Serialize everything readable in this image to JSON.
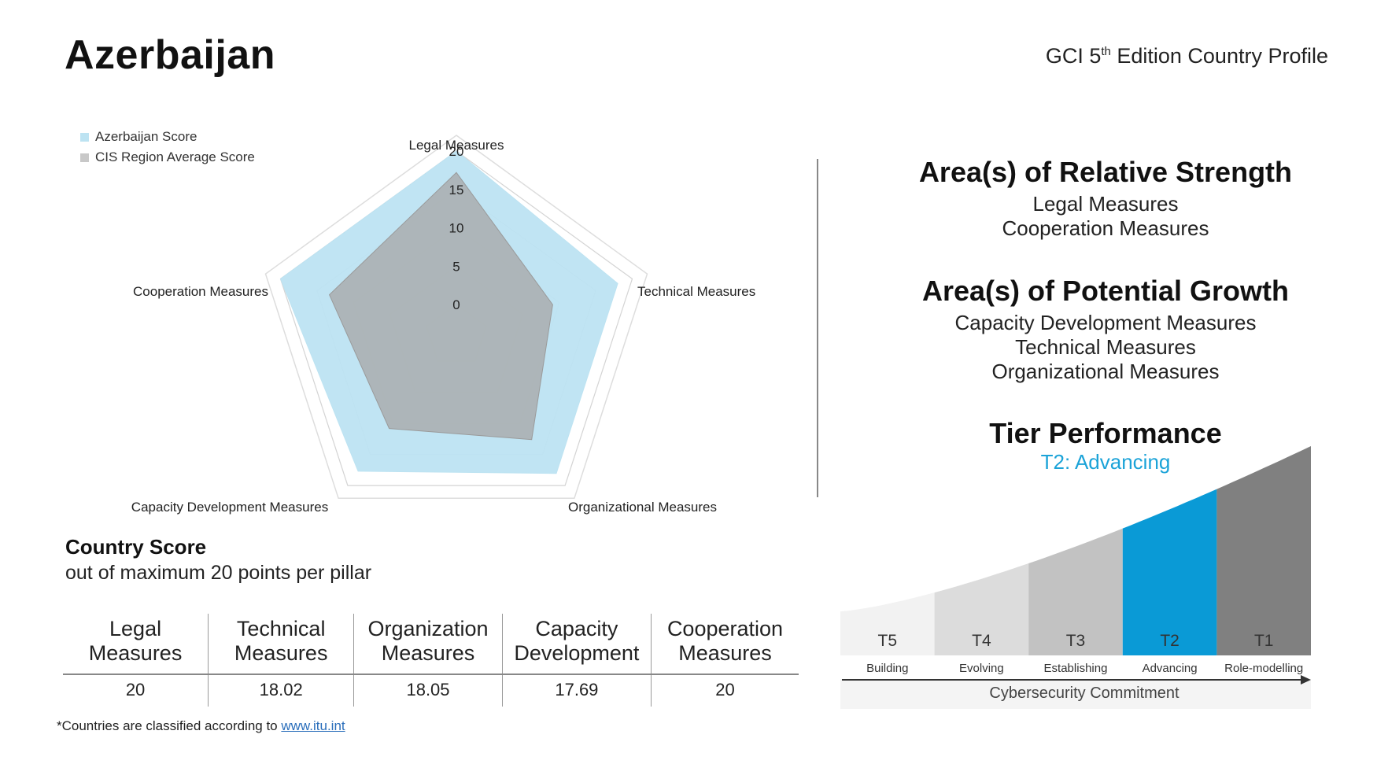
{
  "country": "Azerbaijan",
  "edition": {
    "prefix": "GCI 5",
    "sup": "th",
    "suffix": " Edition Country Profile"
  },
  "chart_data": {
    "type": "radar",
    "axes": [
      "Legal Measures",
      "Technical Measures",
      "Organizational Measures",
      "Capacity Development Measures",
      "Cooperation Measures"
    ],
    "ticks": [
      0,
      5,
      10,
      15,
      20
    ],
    "range": [
      0,
      20
    ],
    "series": [
      {
        "name": "Azerbaijan Score",
        "color": "#bde3f2",
        "values": [
          20,
          18.02,
          18.05,
          17.69,
          20
        ]
      },
      {
        "name": "CIS Region Average Score",
        "color": "#a8a8a8",
        "values": [
          17.2,
          9.1,
          12.6,
          10.8,
          13.3
        ]
      }
    ]
  },
  "country_score": {
    "heading": "Country Score",
    "subheading": "out of maximum 20 points per pillar",
    "columns": [
      {
        "line1": "Legal",
        "line2": "Measures",
        "value": "20"
      },
      {
        "line1": "Technical",
        "line2": "Measures",
        "value": "18.02"
      },
      {
        "line1": "Organization",
        "line2": "Measures",
        "value": "18.05"
      },
      {
        "line1": "Capacity",
        "line2": "Development",
        "value": "17.69"
      },
      {
        "line1": "Cooperation",
        "line2": "Measures",
        "value": "20"
      }
    ]
  },
  "footnote": {
    "text": "*Countries are classified according to ",
    "link": "www.itu.int "
  },
  "strength": {
    "title": "Area(s) of Relative Strength",
    "items": [
      "Legal Measures",
      "Cooperation Measures"
    ]
  },
  "growth": {
    "title": "Area(s) of Potential Growth",
    "items": [
      "Capacity Development Measures",
      "Technical Measures",
      "Organizational Measures"
    ]
  },
  "tier": {
    "title": "Tier Performance",
    "value": "T2: Advancing",
    "axis_label": "Cybersecurity Commitment",
    "tiers": [
      {
        "code": "T5",
        "name": "Building",
        "color": "#f2f2f2"
      },
      {
        "code": "T4",
        "name": "Evolving",
        "color": "#dcdcdc"
      },
      {
        "code": "T3",
        "name": "Establishing",
        "color": "#c2c2c2"
      },
      {
        "code": "T2",
        "name": "Advancing",
        "color": "#0a9ad6"
      },
      {
        "code": "T1",
        "name": "Role-modelling",
        "color": "#808080"
      }
    ]
  }
}
